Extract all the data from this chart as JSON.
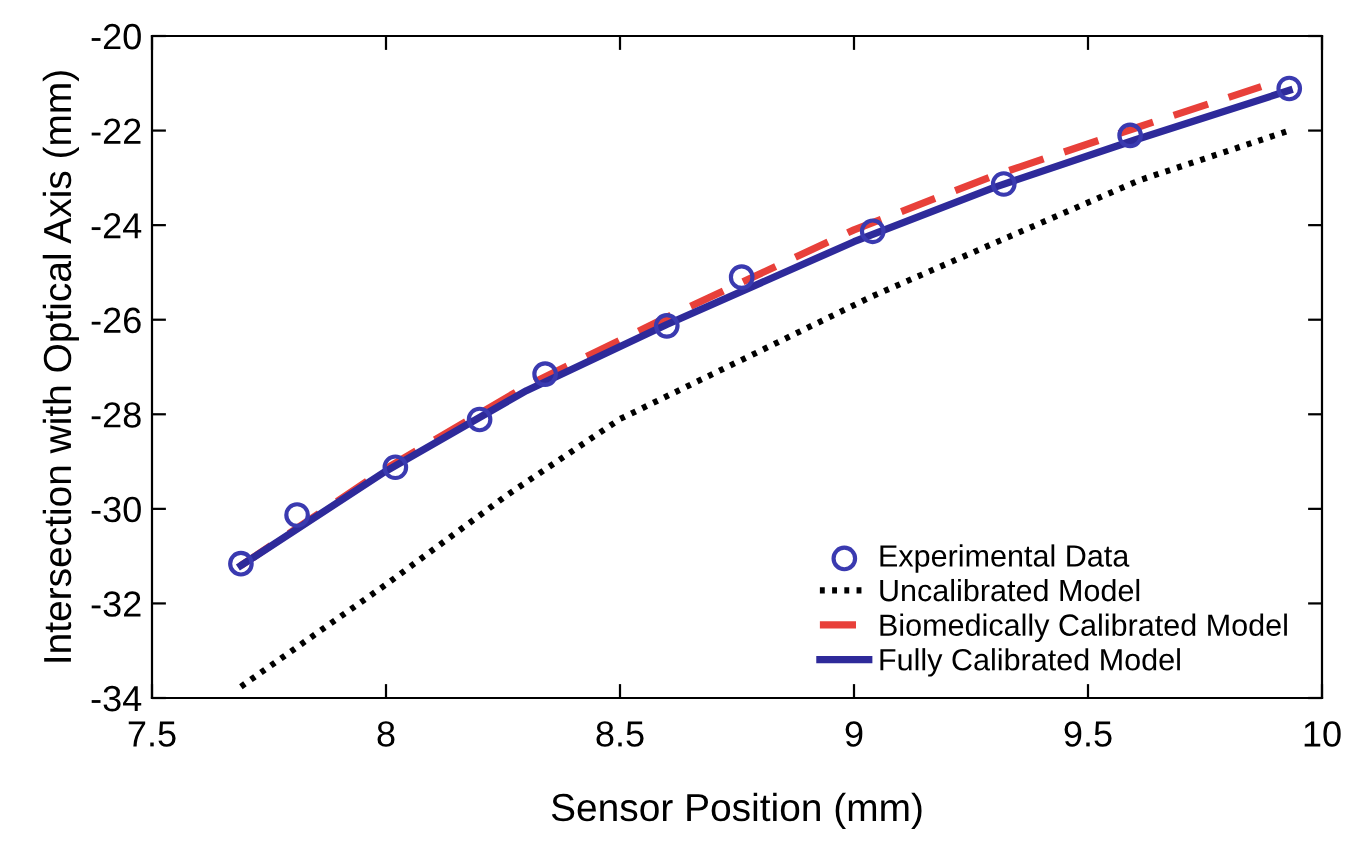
{
  "chart_data": {
    "type": "line",
    "xlabel": "Sensor Position (mm)",
    "ylabel": "Intersection with Optical Axis (mm)",
    "xlim": [
      7.5,
      10
    ],
    "xticks": [
      7.5,
      8,
      8.5,
      9,
      9.5,
      10
    ],
    "ylim": [
      -34,
      -20
    ],
    "yticks": [
      -34,
      -32,
      -30,
      -28,
      -26,
      -24,
      -22,
      -20
    ],
    "grid": false,
    "legend": "bottom right",
    "series": [
      {
        "name": "Experimental Data",
        "type": "scatter",
        "marker": "circle",
        "color": "#3a3ab0",
        "x": [
          7.69,
          7.81,
          8.02,
          8.2,
          8.34,
          8.6,
          8.76,
          9.04,
          9.32,
          9.59,
          9.93
        ],
        "values": [
          -31.16,
          -30.13,
          -29.12,
          -28.11,
          -27.15,
          -26.13,
          -25.1,
          -24.13,
          -23.13,
          -22.1,
          -21.11
        ]
      },
      {
        "name": "Uncalibrated Model",
        "line_style": "dotted",
        "color": "#000000",
        "x": [
          7.69,
          8.0,
          8.26,
          8.5,
          8.76,
          9.04,
          9.33,
          9.61,
          9.93
        ],
        "values": [
          -33.76,
          -31.6,
          -29.7,
          -28.1,
          -26.85,
          -25.5,
          -24.25,
          -23.05,
          -22.0
        ]
      },
      {
        "name": "Biomedically Calibrated Model",
        "line_style": "dashed",
        "color": "#e8403a",
        "x": [
          7.69,
          8.0,
          8.3,
          8.6,
          9.0,
          9.3,
          9.6,
          9.87
        ],
        "values": [
          -31.2,
          -29.15,
          -27.4,
          -25.95,
          -24.1,
          -22.95,
          -21.95,
          -21.07
        ]
      },
      {
        "name": "Fully Calibrated Model",
        "line_style": "solid",
        "color": "#2e2a9a",
        "x": [
          7.69,
          8.0,
          8.3,
          8.6,
          9.0,
          9.3,
          9.6,
          9.93
        ],
        "values": [
          -31.2,
          -29.2,
          -27.5,
          -26.1,
          -24.35,
          -23.2,
          -22.2,
          -21.15
        ]
      }
    ]
  }
}
